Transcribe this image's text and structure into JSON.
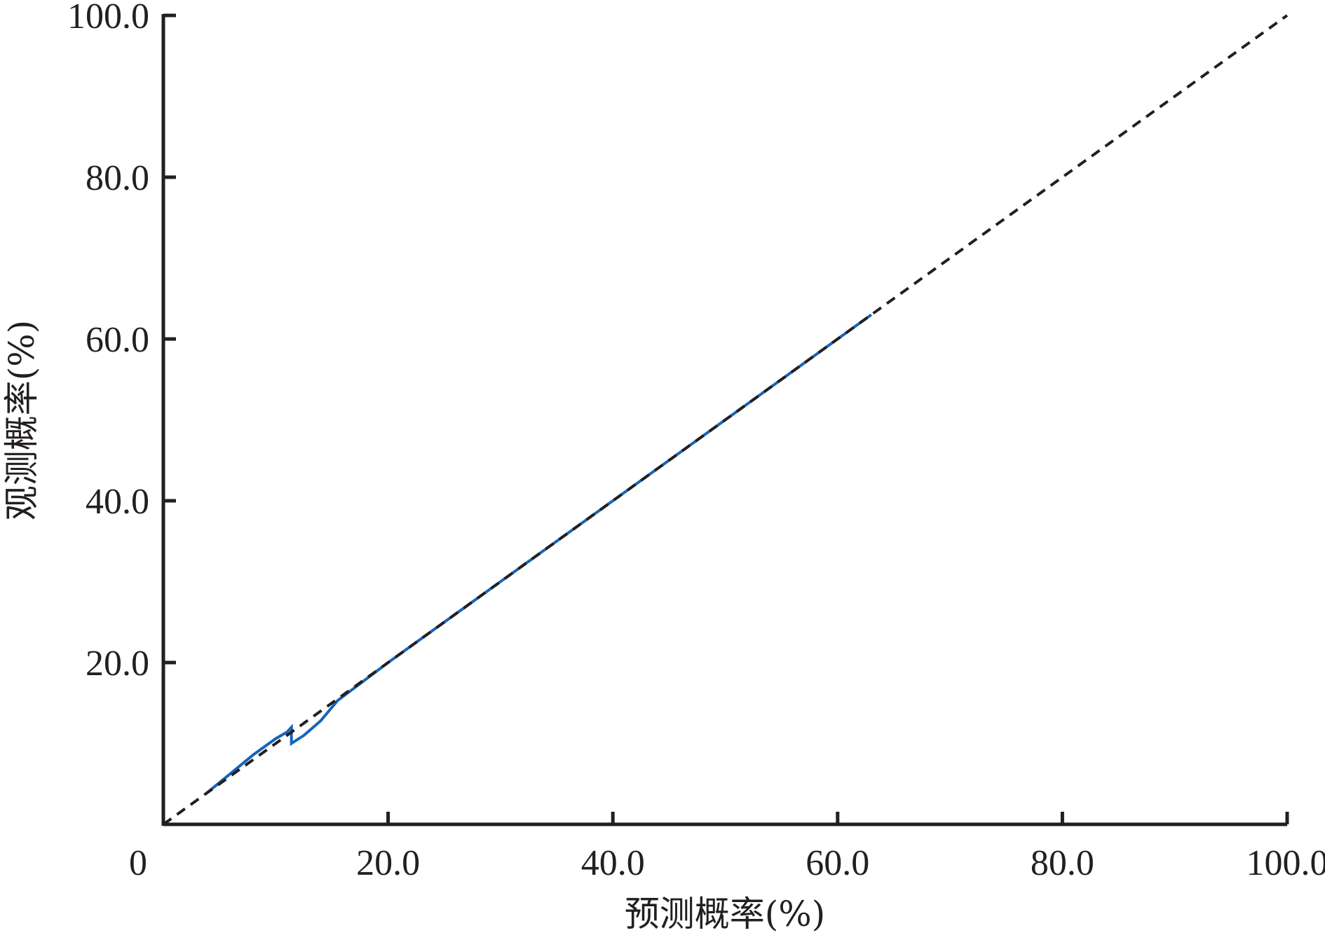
{
  "chart_data": {
    "type": "line",
    "title": "",
    "xlabel": "预测概率(%)",
    "ylabel": "观测概率(%)",
    "xlim": [
      0,
      100
    ],
    "ylim": [
      0,
      100
    ],
    "x_ticks": [
      0,
      20,
      40,
      60,
      80,
      100
    ],
    "x_tick_labels": [
      "0",
      "20.0",
      "40.0",
      "60.0",
      "80.0",
      "100.0"
    ],
    "y_ticks": [
      20,
      40,
      60,
      80,
      100
    ],
    "y_tick_labels": [
      "20.0",
      "40.0",
      "60.0",
      "80.0",
      "100.0"
    ],
    "grid": false,
    "legend": "none",
    "series": [
      {
        "role": "calibration-curve",
        "color": "#1565b8",
        "style": "solid",
        "x": [
          3.8,
          6,
          8,
          10,
          11,
          11.4,
          11.4,
          12.5,
          14,
          15.5,
          20,
          30,
          40,
          50,
          60,
          63
        ],
        "y": [
          3.8,
          6.3,
          8.6,
          10.6,
          11.4,
          12.0,
          10.0,
          11.0,
          12.8,
          15.3,
          20,
          30,
          40,
          50,
          60,
          63
        ]
      },
      {
        "role": "reference-diagonal",
        "color": "#231f20",
        "style": "dashed",
        "x": [
          0,
          100
        ],
        "y": [
          0,
          100
        ]
      }
    ]
  }
}
